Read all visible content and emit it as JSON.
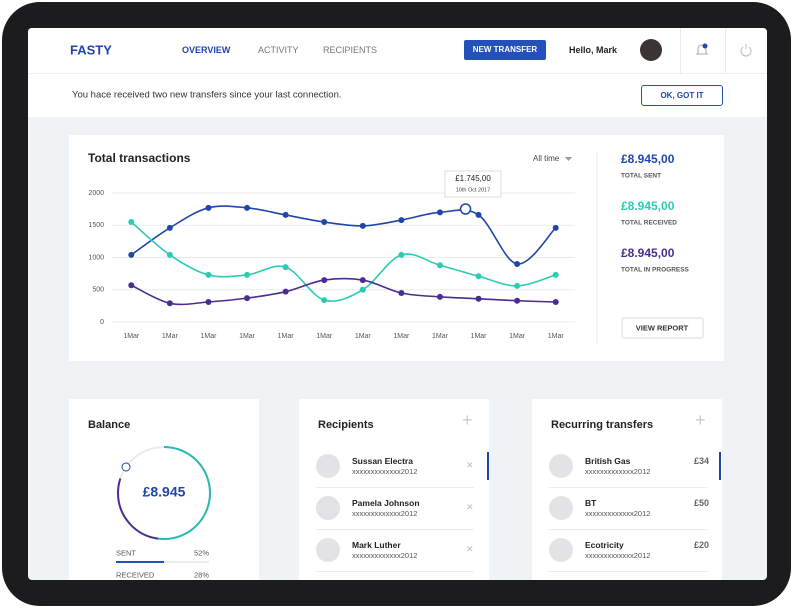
{
  "header": {
    "logo": "FASTY",
    "nav": [
      "OVERVIEW",
      "ACTIVITY",
      "RECIPIENTS"
    ],
    "button": "NEW TRANSFER",
    "greeting": "Hello, Mark"
  },
  "notice": {
    "text": "You hace received two new transfers since your last connection.",
    "button": "OK, GOT IT"
  },
  "chart_data": {
    "type": "line",
    "title": "Total transactions",
    "filter": "All time",
    "categories": [
      "1Mar",
      "1Mar",
      "1Mar",
      "1Mar",
      "1Mar",
      "1Mar",
      "1Mar",
      "1Mar",
      "1Mar",
      "1Mar",
      "1Mar",
      "1Mar"
    ],
    "ylim": [
      0,
      2000
    ],
    "yticks": [
      0,
      500,
      1000,
      1500,
      2000
    ],
    "grid": true,
    "series": [
      {
        "name": "TOTAL SENT",
        "total": "£8.945,00",
        "color": "#1f46a8",
        "values": [
          1040,
          1460,
          1770,
          1770,
          1660,
          1550,
          1490,
          1580,
          1700,
          1660,
          900,
          1460
        ]
      },
      {
        "name": "TOTAL RECEIVED",
        "total": "£8.945,00",
        "color": "#2ccbb4",
        "values": [
          1550,
          1040,
          730,
          730,
          850,
          340,
          500,
          1040,
          880,
          710,
          560,
          730
        ]
      },
      {
        "name": "TOTAL IN PROGRESS",
        "total": "£8.945,00",
        "color": "#4b2d8f",
        "values": [
          570,
          290,
          310,
          370,
          470,
          650,
          650,
          450,
          390,
          360,
          330,
          310
        ]
      }
    ],
    "tooltip": {
      "value": "£1.745,00",
      "date": "10th Oct 2017"
    },
    "button": "VIEW REPORT"
  },
  "balance": {
    "title": "Balance",
    "amount": "£8.945",
    "rows": [
      {
        "label": "SENT",
        "value": 52,
        "value_label": "52%"
      },
      {
        "label": "RECEIVED",
        "value": 28,
        "value_label": "28%"
      }
    ]
  },
  "recipients": {
    "title": "Recipients",
    "items": [
      {
        "name": "Sussan Electra",
        "account": "xxxxxxxxxxxxx2012"
      },
      {
        "name": "Pamela Johnson",
        "account": "xxxxxxxxxxxxx2012"
      },
      {
        "name": "Mark Luther",
        "account": "xxxxxxxxxxxxx2012"
      }
    ]
  },
  "recurring": {
    "title": "Recurring transfers",
    "items": [
      {
        "name": "British Gas",
        "account": "xxxxxxxxxxxxx2012",
        "amount": "£34"
      },
      {
        "name": "BT",
        "account": "xxxxxxxxxxxxx2012",
        "amount": "£50"
      },
      {
        "name": "Ecotricity",
        "account": "xxxxxxxxxxxxx2012",
        "amount": "£20"
      }
    ]
  }
}
